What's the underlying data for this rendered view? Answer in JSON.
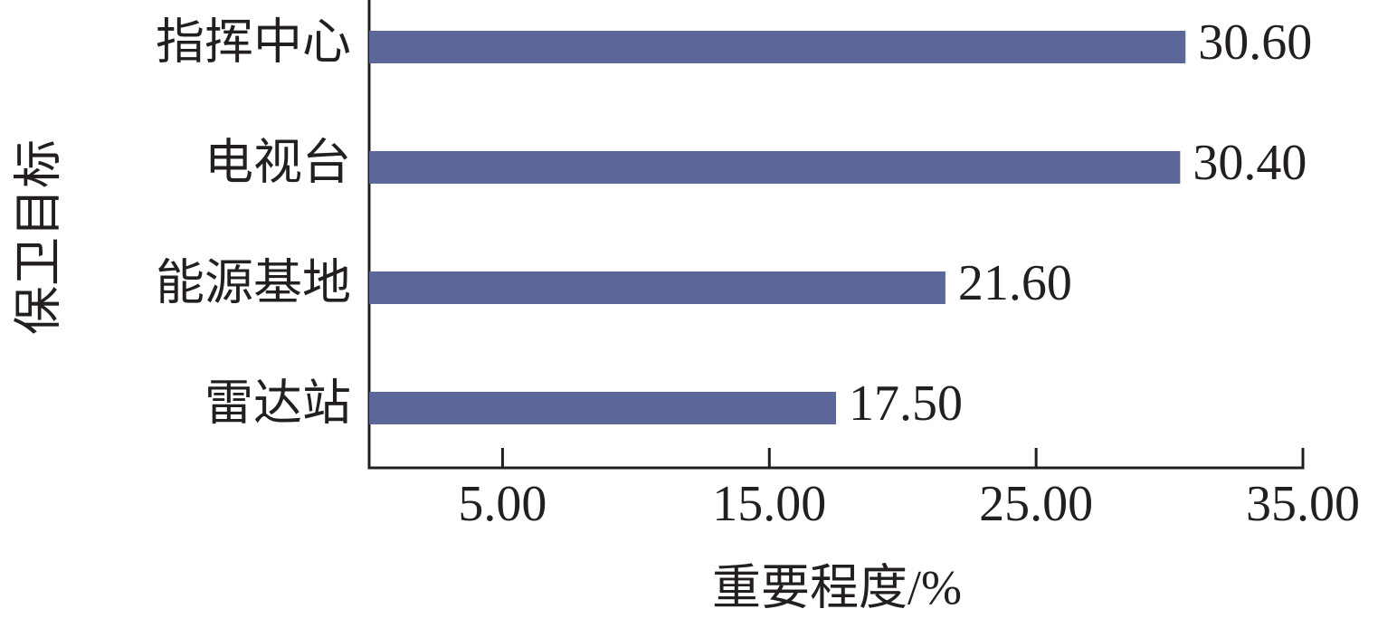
{
  "chart_data": {
    "type": "bar",
    "orientation": "horizontal",
    "x_label": "重要程度/%",
    "y_label": "保卫目标",
    "categories": [
      "指挥中心",
      "电视台",
      "能源基地",
      "雷达站"
    ],
    "values": [
      30.6,
      30.4,
      21.6,
      17.5
    ],
    "value_labels": [
      "30.60",
      "30.40",
      "21.60",
      "17.50"
    ],
    "color": "#5a6798",
    "xlim": [
      0,
      35
    ],
    "xticks": [
      {
        "value": 5,
        "label": "5.00"
      },
      {
        "value": 15,
        "label": "15.00"
      },
      {
        "value": 25,
        "label": "25.00"
      },
      {
        "value": 35,
        "label": "35.00"
      }
    ],
    "grid": false
  }
}
